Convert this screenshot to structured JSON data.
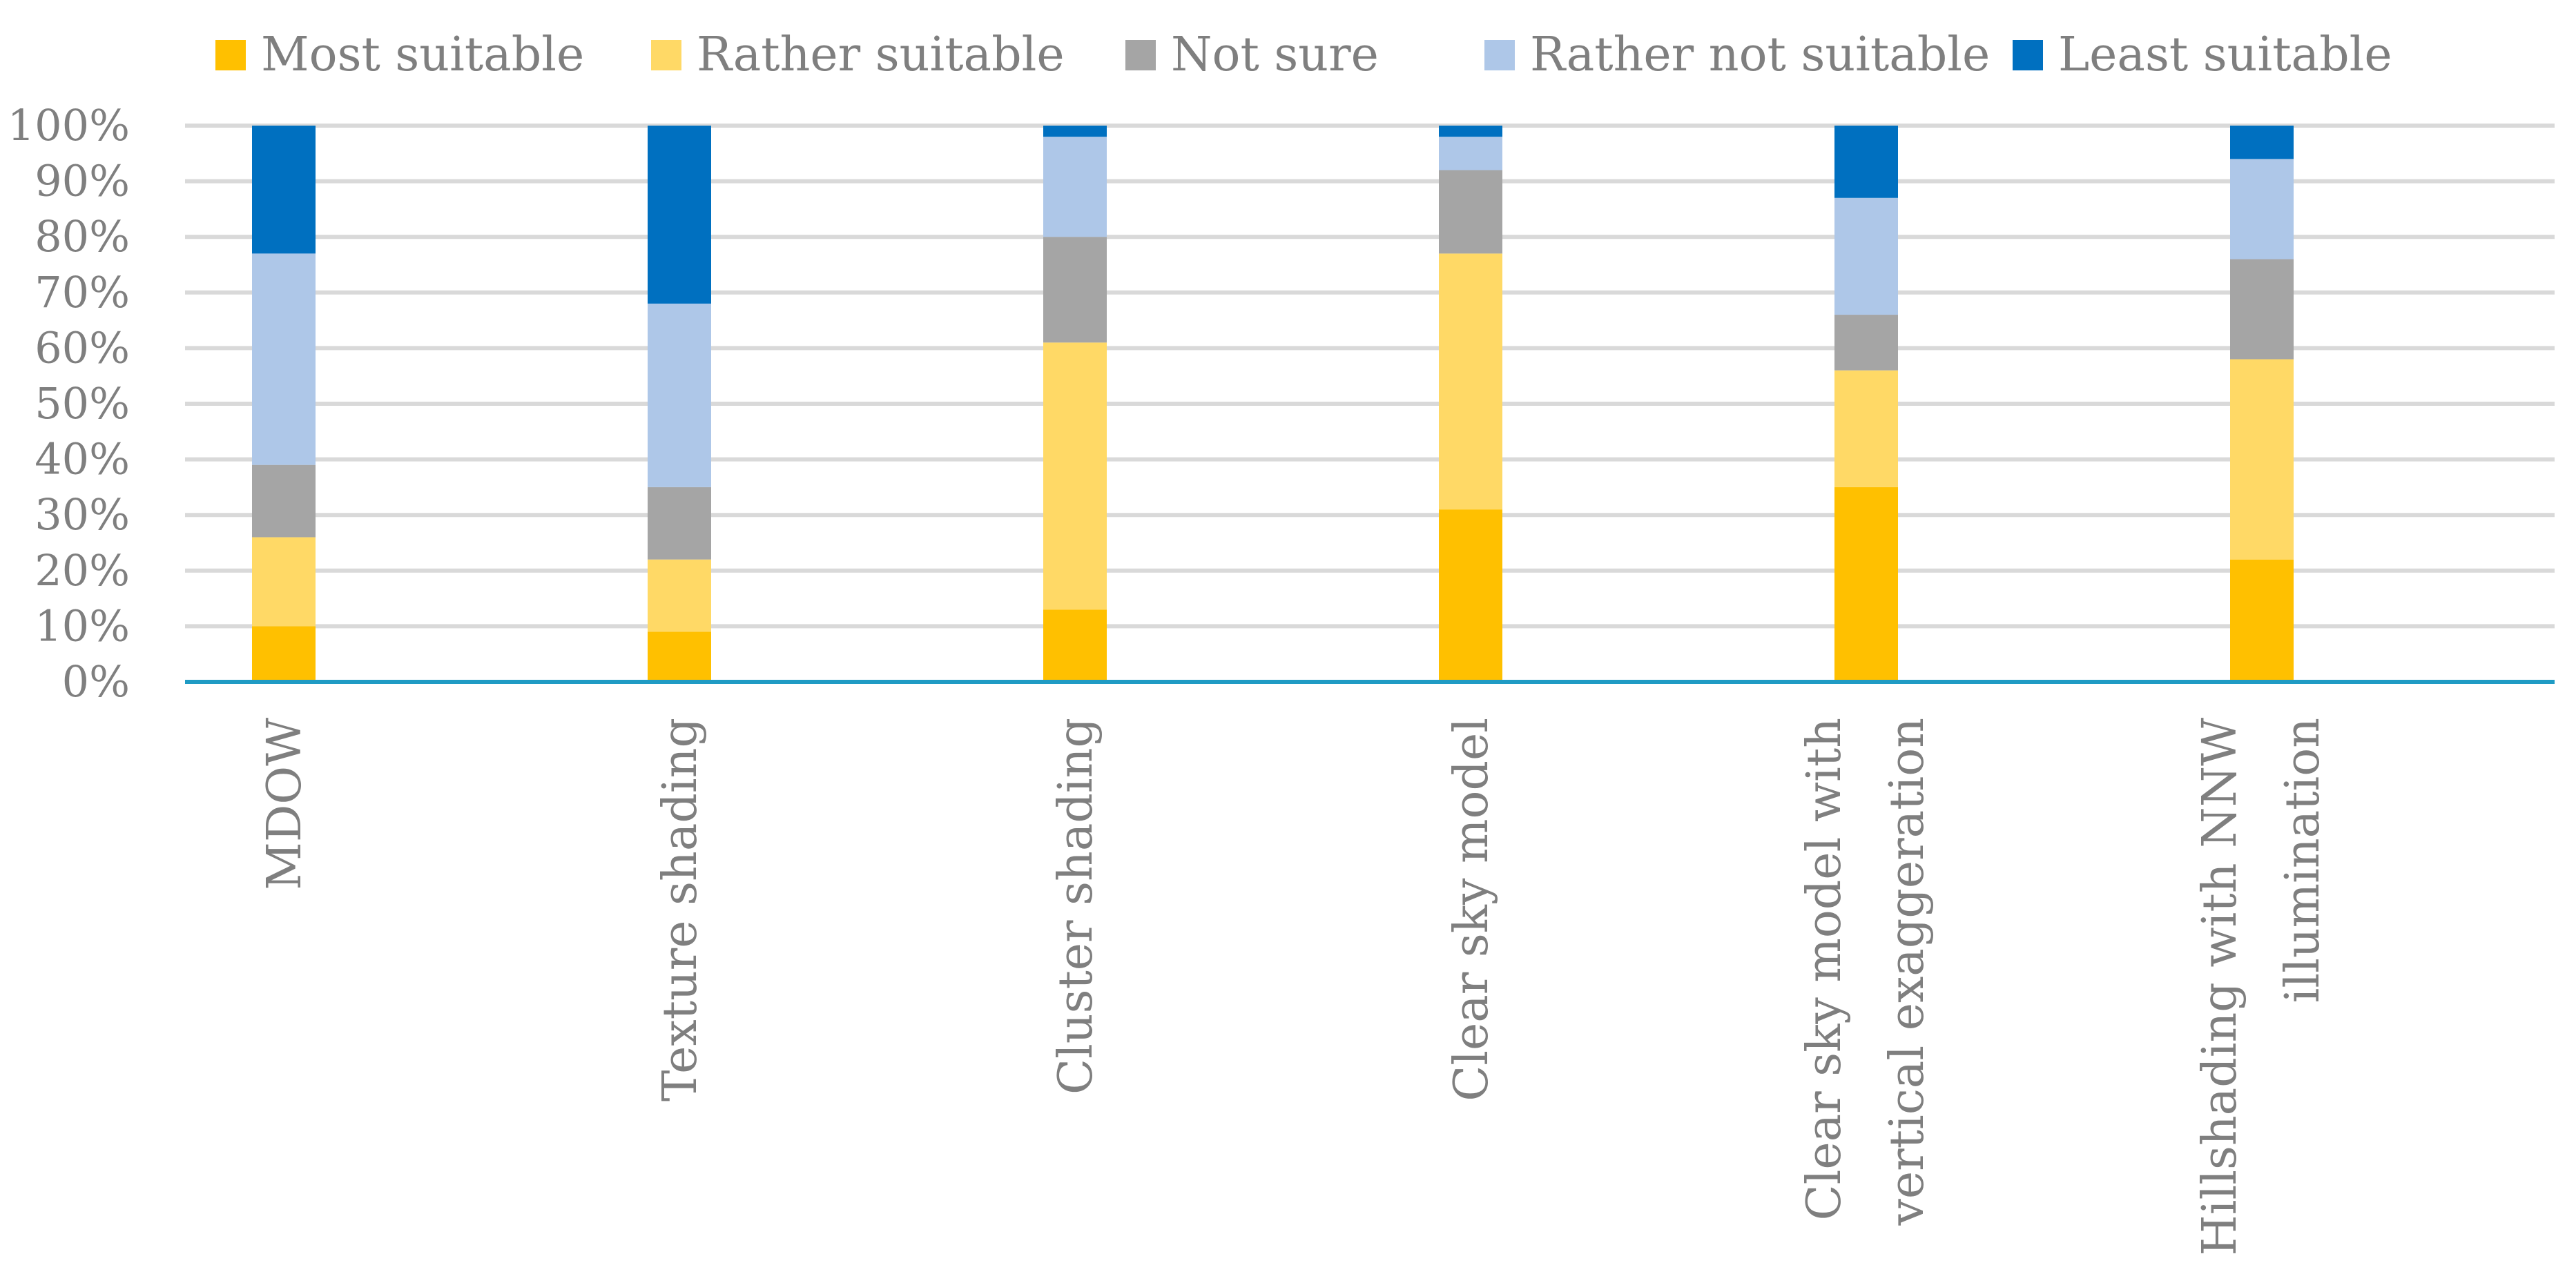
{
  "chart_data": {
    "type": "bar",
    "stacked": true,
    "percent": true,
    "title": "",
    "xlabel": "",
    "ylabel": "",
    "ylim": [
      0,
      100
    ],
    "yticks": [
      "0%",
      "10%",
      "20%",
      "30%",
      "40%",
      "50%",
      "60%",
      "70%",
      "80%",
      "90%",
      "100%"
    ],
    "legend_position": "top",
    "grid": true,
    "categories": [
      [
        "MDOW"
      ],
      [
        "Texture shading"
      ],
      [
        "Cluster shading"
      ],
      [
        "Clear sky model"
      ],
      [
        "Clear sky model with",
        "vertical exaggeration"
      ],
      [
        "Hillshading with NNW",
        "illumination"
      ]
    ],
    "series": [
      {
        "name": "Most suitable",
        "color": "#ffc000",
        "values": [
          10,
          9,
          13,
          31,
          35,
          22
        ]
      },
      {
        "name": "Rather suitable",
        "color": "#ffd966",
        "values": [
          16,
          13,
          48,
          46,
          21,
          36
        ]
      },
      {
        "name": "Not sure",
        "color": "#a5a5a5",
        "values": [
          13,
          13,
          19,
          15,
          10,
          18
        ]
      },
      {
        "name": "Rather not suitable",
        "color": "#aec7e8",
        "values": [
          38,
          33,
          18,
          6,
          21,
          18
        ]
      },
      {
        "name": "Least suitable",
        "color": "#0070c0",
        "values": [
          23,
          32,
          2,
          2,
          13,
          6
        ]
      }
    ]
  }
}
